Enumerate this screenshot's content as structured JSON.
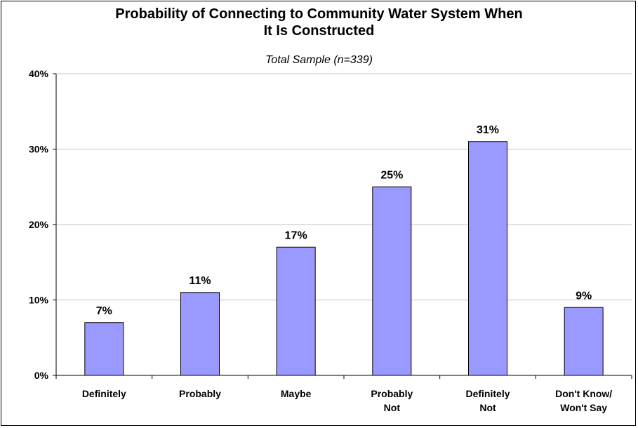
{
  "chart_data": {
    "type": "bar",
    "title_lines": [
      "Probability of Connecting to Community Water System When",
      "It Is Constructed"
    ],
    "subtitle": "Total Sample (n=339)",
    "categories": [
      [
        "Definitely"
      ],
      [
        "Probably"
      ],
      [
        "Maybe"
      ],
      [
        "Probably",
        "Not"
      ],
      [
        "Definitely",
        "Not"
      ],
      [
        "Don't Know/",
        "Won't Say"
      ]
    ],
    "values": [
      7,
      11,
      17,
      25,
      31,
      9
    ],
    "data_labels": [
      "7%",
      "11%",
      "17%",
      "25%",
      "31%",
      "9%"
    ],
    "ylim": [
      0,
      40
    ],
    "yticks": [
      0,
      10,
      20,
      30,
      40
    ],
    "ytick_labels": [
      "0%",
      "10%",
      "20%",
      "30%",
      "40%"
    ],
    "grid": true,
    "bar_color": "#9999ff",
    "bar_edge_color": "#000000",
    "grid_color": "#c0c0c0"
  }
}
